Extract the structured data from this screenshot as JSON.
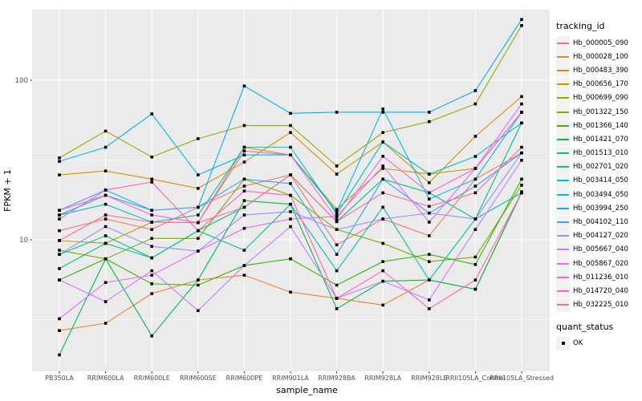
{
  "figure": {
    "x_title": "sample_name",
    "y_title": "FPKM + 1",
    "colors": {
      "panel_bg": "#EBEBEB",
      "grid": "#FFFFFF",
      "axis_text": "#4D4D4D",
      "axis_title": "#000000",
      "point": "#000000",
      "legend_key_bg": "#F2F2F2"
    }
  },
  "legend": {
    "color_title": "tracking_id",
    "shape_title": "quant_status",
    "shape_item": "OK"
  },
  "chart_data": {
    "type": "line",
    "xlabel": "sample_name",
    "ylabel": "FPKM + 1",
    "y_scale": "log10",
    "y_axis_breaks": [
      10,
      100
    ],
    "y_minor_breaks": [
      3.1623,
      31.623
    ],
    "ylim_approx": [
      1.5,
      290
    ],
    "grid": true,
    "legend_position": "right",
    "point_shape": "filled-square-black",
    "quant_status": "OK",
    "categories": [
      "PB350LA",
      "RRIM600LA",
      "RRIM600LE",
      "RRIM600SE",
      "RRIM600PE",
      "RRIM901LA",
      "RRIM928BA",
      "RRIM928LA",
      "RRIM928LE",
      "RRII105LA_Control",
      "RRII105LA_Stressed"
    ],
    "series": [
      {
        "name": "Hb_000005_090",
        "color": "#F8766D",
        "values": [
          11.4,
          13.5,
          11.6,
          16,
          21.7,
          25.5,
          9.3,
          13.5,
          10.6,
          24,
          35
        ]
      },
      {
        "name": "Hb_000028_100",
        "color": "#EA8331",
        "values": [
          2.7,
          3.0,
          4.6,
          5.6,
          6.0,
          4.7,
          4.3,
          3.9,
          5.6,
          4.9,
          20
        ]
      },
      {
        "name": "Hb_000483_390",
        "color": "#D89000",
        "values": [
          25.5,
          27,
          24,
          21,
          30.7,
          47,
          25.8,
          41,
          22.8,
          44.5,
          79
        ]
      },
      {
        "name": "Hb_000656_170",
        "color": "#C09B00",
        "values": [
          9.9,
          9.5,
          12.9,
          12.8,
          38,
          34,
          15.5,
          28,
          25.8,
          28,
          63
        ]
      },
      {
        "name": "Hb_000699_090",
        "color": "#A3A500",
        "values": [
          32.6,
          48,
          33,
          43,
          52,
          52,
          29,
          47,
          55,
          71,
          220
        ]
      },
      {
        "name": "Hb_001322_150",
        "color": "#7CAE00",
        "values": [
          8.6,
          7.6,
          10.2,
          10.2,
          24,
          19,
          11.6,
          9.5,
          7.3,
          7.8,
          22
        ]
      },
      {
        "name": "Hb_001366_140",
        "color": "#39B600",
        "values": [
          5.6,
          7.6,
          5.3,
          5.2,
          6.9,
          7.6,
          5.2,
          7.3,
          8.1,
          7.0,
          24
        ]
      },
      {
        "name": "Hb_001421_070",
        "color": "#00BB4E",
        "values": [
          1.9,
          7.6,
          2.5,
          5.6,
          17.6,
          16.7,
          3.7,
          5.5,
          5.6,
          4.9,
          19.7
        ]
      },
      {
        "name": "Hb_001513_010",
        "color": "#00C087",
        "values": [
          6.6,
          9.5,
          7.7,
          11.4,
          16,
          25.5,
          13,
          24,
          19.7,
          13.5,
          54
        ]
      },
      {
        "name": "Hb_002701_020",
        "color": "#00C1A3",
        "values": [
          8.1,
          10.6,
          7.7,
          11.4,
          8.6,
          16.7,
          6.4,
          16,
          5.6,
          13.5,
          19.7
        ]
      },
      {
        "name": "Hb_003414_050",
        "color": "#00BFC4",
        "values": [
          14.3,
          16.7,
          12.9,
          14.3,
          38,
          38,
          14.5,
          41,
          25.8,
          33.3,
          54
        ]
      },
      {
        "name": "Hb_003494_050",
        "color": "#00BAE0",
        "values": [
          31,
          38,
          61.5,
          25.5,
          34,
          34,
          15,
          66,
          18,
          24,
          63
        ]
      },
      {
        "name": "Hb_003994_250",
        "color": "#00B0F6",
        "values": [
          14.3,
          19,
          15.3,
          16,
          92,
          62,
          63,
          63,
          63,
          86,
          240
        ]
      },
      {
        "name": "Hb_004102_110",
        "color": "#35A2FF",
        "values": [
          15.3,
          20.5,
          15.3,
          16,
          24,
          22.5,
          8.1,
          24,
          14.7,
          21.7,
          35
        ]
      },
      {
        "name": "Hb_004127_020",
        "color": "#9590FF",
        "values": [
          8.1,
          12.1,
          9.1,
          8.5,
          14.3,
          15,
          11.6,
          13.5,
          14.7,
          13.5,
          35
        ]
      },
      {
        "name": "Hb_005667_040",
        "color": "#C77CFF",
        "values": [
          5.6,
          4.1,
          6.4,
          3.6,
          6.9,
          12.1,
          4.3,
          5.5,
          4.2,
          11.6,
          31.5
        ]
      },
      {
        "name": "Hb_005867_020",
        "color": "#E76BF3",
        "values": [
          3.2,
          5.4,
          6.0,
          8.5,
          11.8,
          13.5,
          14,
          29,
          12.9,
          28,
          71
        ]
      },
      {
        "name": "Hb_011236_010",
        "color": "#FA62DB",
        "values": [
          15.3,
          19,
          14.3,
          12.8,
          36,
          34,
          13.5,
          33.4,
          19.7,
          28,
          63
        ]
      },
      {
        "name": "Hb_014720_040",
        "color": "#FF62BC",
        "values": [
          13.5,
          20.5,
          23,
          11.4,
          20.2,
          19,
          4.3,
          6.4,
          3.7,
          5.6,
          19.7
        ]
      },
      {
        "name": "Hb_032225_010",
        "color": "#FF6A98",
        "values": [
          9.9,
          14.3,
          12.9,
          12.8,
          16,
          25.5,
          13,
          19.7,
          16.2,
          19.7,
          38
        ]
      }
    ]
  }
}
